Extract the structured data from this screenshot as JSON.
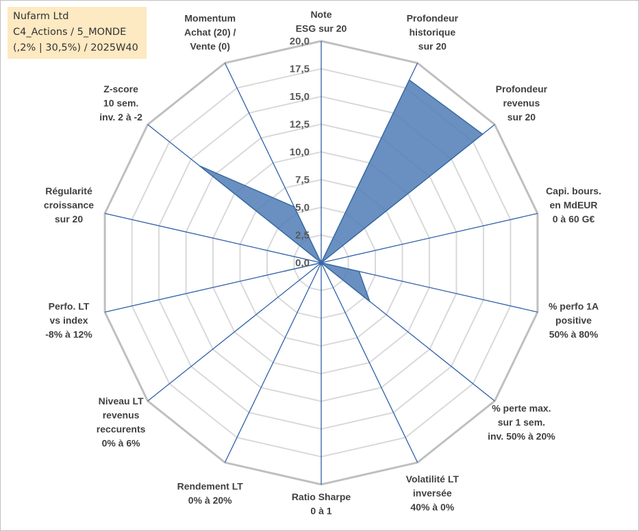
{
  "info": {
    "line1": "Nufarm Ltd",
    "line2": "C4_Actions / 5_MONDE",
    "line3": "(,2% | 30,5%) / 2025W40"
  },
  "colors": {
    "fill": "#4f7db5",
    "stroke": "#3a6aa3",
    "spoke": "#2e5fa8",
    "grid_outer": "#bfbfbf",
    "grid_inner": "#d9d9d9",
    "info_bg": "#fde9c2"
  },
  "chart_data": {
    "type": "radar",
    "grid": true,
    "rlim": [
      0,
      20
    ],
    "tick_labels": [
      "0,0",
      "2,5",
      "5,0",
      "7,5",
      "10,0",
      "12,5",
      "15,0",
      "17,5",
      "20,0"
    ],
    "axes": [
      {
        "label": [
          "Note",
          "ESG sur 20"
        ]
      },
      {
        "label": [
          "Profondeur",
          "historique",
          "sur 20"
        ]
      },
      {
        "label": [
          "Profondeur",
          "revenus",
          "sur 20"
        ]
      },
      {
        "label": [
          "Capi. bours.",
          "en MdEUR",
          "0 à 60 G€"
        ]
      },
      {
        "label": [
          "% perfo 1A",
          "positive",
          "50% à 80%"
        ]
      },
      {
        "label": [
          "% perte max.",
          "sur 1 sem.",
          "inv. 50% à 20%"
        ]
      },
      {
        "label": [
          "Volatilité LT",
          "inversée",
          "40% à 0%"
        ]
      },
      {
        "label": [
          "Ratio Sharpe",
          "0 à 1"
        ]
      },
      {
        "label": [
          "Rendement LT",
          "0% à 20%"
        ]
      },
      {
        "label": [
          "Niveau LT",
          "revenus",
          "reccurents",
          "0% à 6%"
        ]
      },
      {
        "label": [
          "Perfo. LT",
          "vs index",
          "-8% à 12%"
        ]
      },
      {
        "label": [
          "Régularité",
          "croissance",
          "sur 20"
        ]
      },
      {
        "label": [
          "Z-score",
          "10 sem.",
          "inv. 2 à -2"
        ]
      },
      {
        "label": [
          "Momentum",
          "Achat (20) /",
          "Vente (0)"
        ]
      }
    ],
    "series": [
      {
        "values": [
          0,
          18.3,
          18.6,
          0,
          3.5,
          5.6,
          0,
          0,
          0,
          0,
          3.4,
          0,
          14.0,
          5.6
        ]
      }
    ]
  }
}
